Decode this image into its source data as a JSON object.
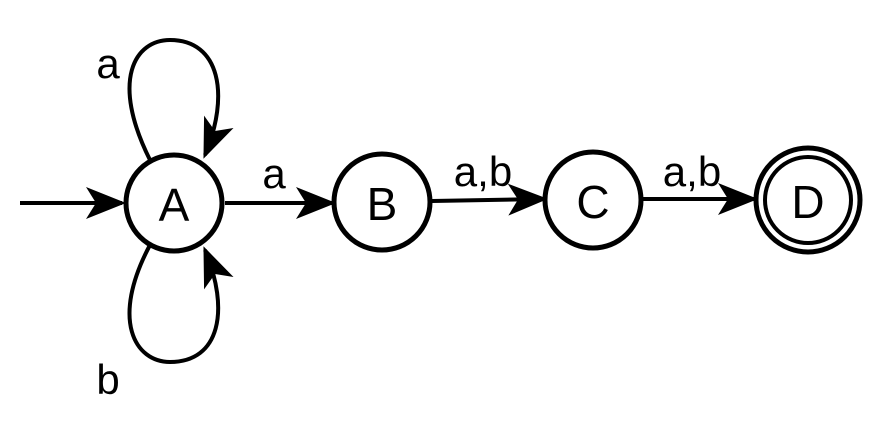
{
  "diagram": {
    "type": "finite-automaton",
    "states": [
      {
        "id": "A",
        "label": "A",
        "start": true,
        "accepting": false
      },
      {
        "id": "B",
        "label": "B",
        "start": false,
        "accepting": false
      },
      {
        "id": "C",
        "label": "C",
        "start": false,
        "accepting": false
      },
      {
        "id": "D",
        "label": "D",
        "start": false,
        "accepting": true
      }
    ],
    "transitions": [
      {
        "from": "A",
        "to": "A",
        "label": "a"
      },
      {
        "from": "A",
        "to": "A",
        "label": "b"
      },
      {
        "from": "A",
        "to": "B",
        "label": "a"
      },
      {
        "from": "B",
        "to": "C",
        "label": "a,b"
      },
      {
        "from": "C",
        "to": "D",
        "label": "a,b"
      }
    ]
  },
  "colors": {
    "stroke": "#000000",
    "fill": "#ffffff"
  }
}
